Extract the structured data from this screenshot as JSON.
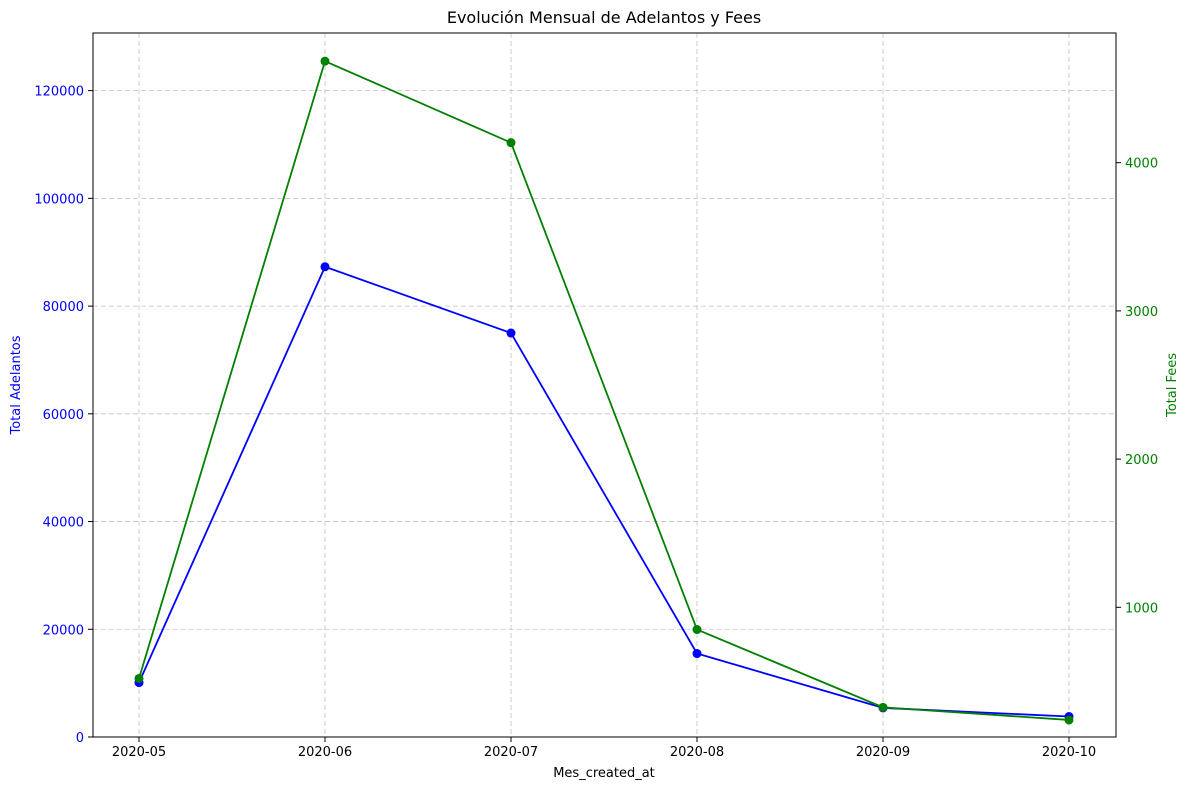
{
  "chart_data": {
    "type": "line",
    "title": "Evolución Mensual de Adelantos y Fees",
    "xlabel": "Mes_created_at",
    "categories": [
      "2020-05",
      "2020-06",
      "2020-07",
      "2020-08",
      "2020-09",
      "2020-10"
    ],
    "grid": true,
    "y_left": {
      "label": "Total Adelantos",
      "color": "#0000ff",
      "range": [
        0,
        130700
      ],
      "ticks": [
        0,
        20000,
        40000,
        60000,
        80000,
        100000,
        120000
      ]
    },
    "y_right": {
      "label": "Total Fees",
      "color": "#008000",
      "range": [
        125,
        4875
      ],
      "ticks": [
        1000,
        2000,
        3000,
        4000
      ]
    },
    "series": [
      {
        "name": "Total Adelantos",
        "axis": "left",
        "color": "#0000ff",
        "values": [
          10100,
          87300,
          75000,
          15500,
          5400,
          3800
        ]
      },
      {
        "name": "Total Fees",
        "axis": "right",
        "color": "#008000",
        "values": [
          520,
          4685,
          4135,
          850,
          325,
          240
        ]
      }
    ]
  }
}
